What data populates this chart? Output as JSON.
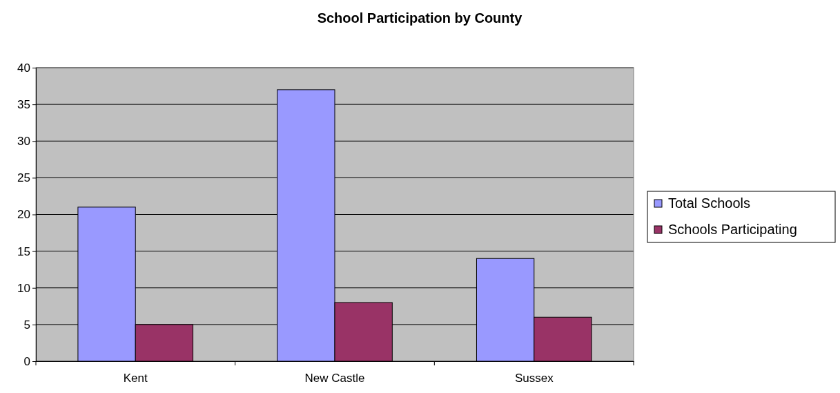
{
  "chart_data": {
    "type": "bar",
    "title": "School Participation by County",
    "categories": [
      "Kent",
      "New Castle",
      "Sussex"
    ],
    "series": [
      {
        "name": "Total Schools",
        "color": "#9999ff",
        "values": [
          21,
          37,
          14
        ]
      },
      {
        "name": "Schools Participating",
        "color": "#993366",
        "values": [
          5,
          8,
          6
        ]
      }
    ],
    "ylim": [
      0,
      40
    ],
    "yticks": [
      0,
      5,
      10,
      15,
      20,
      25,
      30,
      35,
      40
    ],
    "grid": "y",
    "legend": "right"
  }
}
